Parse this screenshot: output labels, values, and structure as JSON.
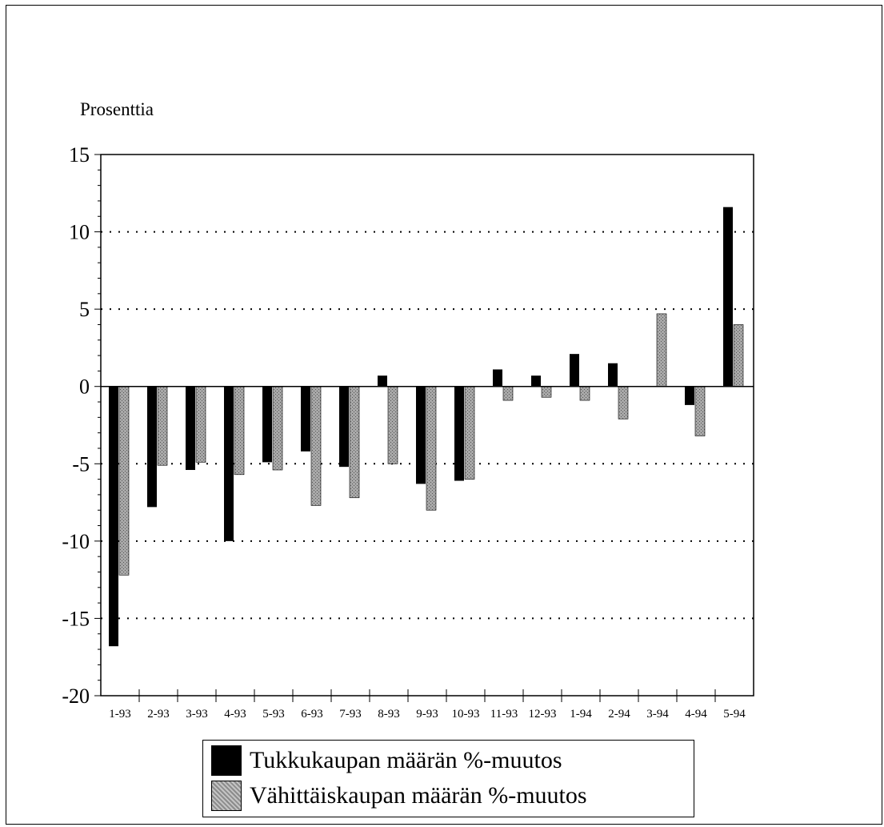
{
  "chart_data": {
    "type": "bar",
    "title": "",
    "ylabel": "Prosenttia",
    "xlabel": "",
    "ylim": [
      -20,
      15
    ],
    "yticks": [
      15,
      10,
      5,
      0,
      -5,
      -10,
      -15,
      -20
    ],
    "grid": "horizontal dotted",
    "categories": [
      "1-93",
      "2-93",
      "3-93",
      "4-93",
      "5-93",
      "6-93",
      "7-93",
      "8-93",
      "9-93",
      "10-93",
      "11-93",
      "12-93",
      "1-94",
      "2-94",
      "3-94",
      "4-94",
      "5-94"
    ],
    "series": [
      {
        "name": "Tukkukaupan määrän %-muutos",
        "color": "#000000",
        "values": [
          -16.8,
          -7.8,
          -5.4,
          -10.0,
          -4.9,
          -4.2,
          -5.2,
          0.7,
          -6.3,
          -6.1,
          1.1,
          0.7,
          2.1,
          1.5,
          0,
          -1.2,
          11.6
        ]
      },
      {
        "name": "Vähittäiskaupan määrän %-muutos",
        "color": "#999999",
        "values": [
          -12.2,
          -5.1,
          -4.9,
          -5.7,
          -5.4,
          -7.7,
          -7.2,
          -5.0,
          -8.0,
          -6.0,
          -0.9,
          -0.7,
          -0.9,
          -2.1,
          4.7,
          -3.2,
          4.0
        ]
      }
    ],
    "legend_position": "bottom"
  }
}
